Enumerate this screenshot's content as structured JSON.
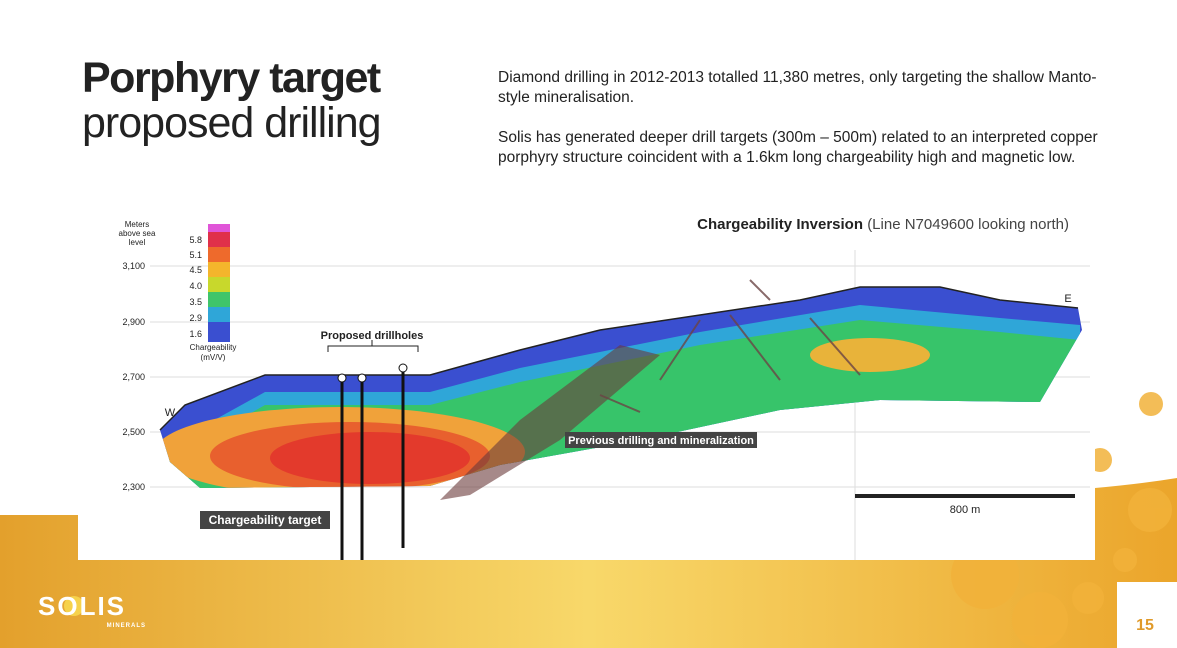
{
  "title": {
    "bold": "Porphyry target",
    "light": "proposed drilling"
  },
  "paragraphs": [
    "Diamond drilling in 2012-2013 totalled 11,380 metres, only targeting the shallow Manto-style mineralisation.",
    "Solis has generated deeper drill targets (300m – 500m) related to an interpreted copper porphyry structure coincident with a 1.6km long chargeability high and magnetic low."
  ],
  "figure": {
    "title_bold": "Chargeability Inversion",
    "title_rest": "(Line N7049600 looking north)",
    "y_axis_label": [
      "Meters",
      "above sea",
      "level"
    ],
    "y_ticks": [
      "3,100",
      "2,900",
      "2,700",
      "2,500",
      "2,300"
    ],
    "legend_values": [
      "5.8",
      "5.1",
      "4.5",
      "4.0",
      "3.5",
      "2.9",
      "1.6"
    ],
    "legend_label": [
      "Chargeability",
      "(mV/V)"
    ],
    "proposed": "Proposed drillholes",
    "previous": "Previous drilling and mineralization",
    "target": "Chargeability target",
    "west": "W",
    "east": "E",
    "scale": "800 m"
  },
  "logo": {
    "name": "SOLIS",
    "sub": "MINERALS"
  },
  "page_number": "15"
}
